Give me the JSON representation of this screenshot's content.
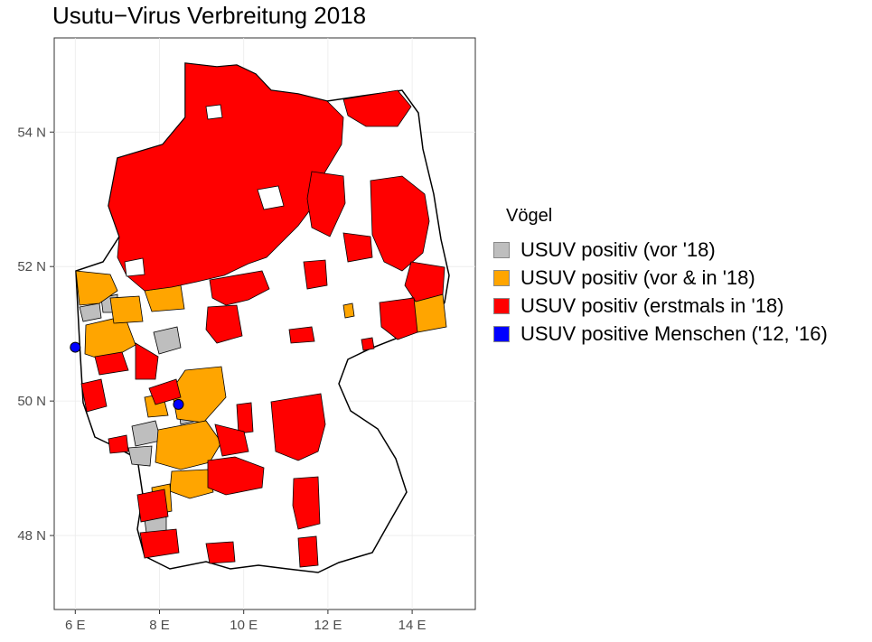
{
  "title": "Usutu−Virus Verbreitung 2018",
  "x_axis": {
    "ticks": [
      {
        "value": 6,
        "label": "6 E"
      },
      {
        "value": 8,
        "label": "8 E"
      },
      {
        "value": 10,
        "label": "10 E"
      },
      {
        "value": 12,
        "label": "12 E"
      },
      {
        "value": 14,
        "label": "14 E"
      }
    ],
    "lim": [
      5.5,
      15.5
    ]
  },
  "y_axis": {
    "ticks": [
      {
        "value": 48,
        "label": "48 N"
      },
      {
        "value": 50,
        "label": "50 N"
      },
      {
        "value": 52,
        "label": "52 N"
      },
      {
        "value": 54,
        "label": "54 N"
      }
    ],
    "lim": [
      46.9,
      55.4
    ]
  },
  "legend": {
    "title": "Vögel",
    "items": [
      {
        "label": "USUV positiv (vor '18)",
        "color": "#bebebe"
      },
      {
        "label": "USUV positiv (vor & in '18)",
        "color": "#ffa500"
      },
      {
        "label": "USUV positiv (erstmals in '18)",
        "color": "#ff0000"
      },
      {
        "label": "USUV positive Menschen ('12, '16)",
        "color": "#0000ff"
      }
    ]
  },
  "human_cases": [
    {
      "lon": 6.0,
      "lat": 50.8
    },
    {
      "lon": 8.45,
      "lat": 49.95
    }
  ]
}
